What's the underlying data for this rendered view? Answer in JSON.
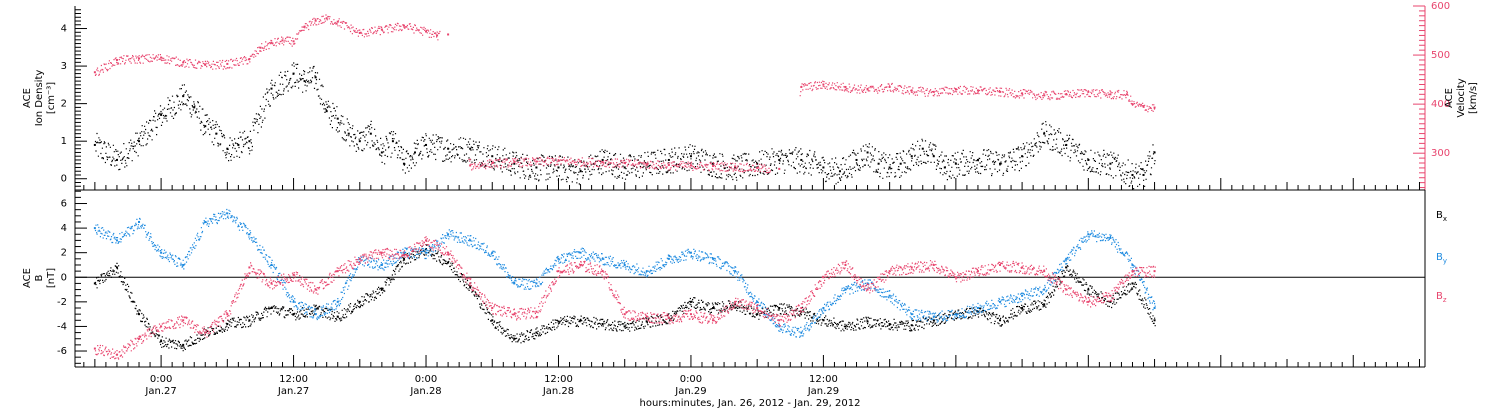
{
  "colors": {
    "density": "#000000",
    "velocity": "#e8456e",
    "bx": "#000000",
    "by": "#1f8be0",
    "bz": "#e8456e",
    "axis": "#000000"
  },
  "chart_data": [
    {
      "type": "scatter",
      "panel": "top",
      "left_label_lines": [
        "ACE",
        "Ion Density",
        "[cm⁻³]"
      ],
      "right_label_lines": [
        "ACE",
        "Velocity",
        "[km/s]"
      ],
      "left_ylim": [
        -0.3,
        4.6
      ],
      "left_ticks": [
        0,
        1,
        2,
        3,
        4
      ],
      "right_ylim": [
        225,
        600
      ],
      "right_ticks": [
        300,
        400,
        500,
        600
      ],
      "series": [
        {
          "axis": "left",
          "color": "#000000",
          "x": [
            -6,
            -4,
            -2,
            0,
            2,
            3,
            4,
            5,
            6,
            7,
            8,
            10,
            12,
            13,
            14,
            15,
            16,
            17,
            18,
            19,
            20,
            21,
            22,
            23,
            24,
            26,
            28,
            30,
            32,
            34,
            36,
            38,
            40,
            42,
            44,
            46,
            48,
            50,
            52,
            54,
            56,
            58,
            60,
            61.5,
            63,
            64,
            65,
            66,
            67,
            68,
            69,
            70,
            71,
            72,
            74,
            76,
            78,
            80,
            82,
            84,
            86,
            88,
            89,
            90
          ],
          "values": [
            0.9,
            0.5,
            1.0,
            1.7,
            2.2,
            1.9,
            1.4,
            1.2,
            0.8,
            0.9,
            1.0,
            2.4,
            2.8,
            2.6,
            2.7,
            1.8,
            1.6,
            1.2,
            1.0,
            1.2,
            0.7,
            1.0,
            0.4,
            0.7,
            0.9,
            0.8,
            0.8,
            0.6,
            0.4,
            0.3,
            0.3,
            0.2,
            0.5,
            0.3,
            0.4,
            0.5,
            0.6,
            0.4,
            0.3,
            0.4,
            0.5,
            0.5,
            0.3,
            0.2,
            0.5,
            0.7,
            0.4,
            0.3,
            0.4,
            0.6,
            0.8,
            0.6,
            0.3,
            0.4,
            0.5,
            0.4,
            0.6,
            1.2,
            0.9,
            0.5,
            0.4,
            0.1,
            0.1,
            0.7
          ]
        },
        {
          "axis": "right",
          "color": "#e8456e",
          "x": [
            -6,
            -4,
            -2,
            0,
            2,
            4,
            6,
            8,
            9,
            10,
            11,
            12,
            13,
            14,
            15,
            16,
            18,
            20,
            22,
            24,
            25,
            26,
            28,
            30,
            32,
            34,
            36,
            38,
            40,
            42,
            44,
            46,
            48,
            50,
            52,
            54,
            56,
            58,
            60,
            62,
            64,
            66,
            68,
            70,
            72,
            74,
            76,
            78,
            80,
            82,
            84,
            86,
            87.5,
            88,
            89,
            90
          ],
          "values": [
            465,
            490,
            493,
            495,
            485,
            480,
            482,
            492,
            515,
            525,
            530,
            528,
            558,
            570,
            575,
            568,
            545,
            552,
            560,
            548,
            540,
            542,
            275,
            280,
            282,
            283,
            285,
            283,
            282,
            280,
            278,
            276,
            275,
            274,
            273,
            270,
            268,
            435,
            440,
            435,
            430,
            435,
            428,
            425,
            430,
            428,
            425,
            422,
            418,
            420,
            425,
            420,
            420,
            400,
            395,
            393
          ]
        }
      ]
    },
    {
      "type": "scatter",
      "panel": "bottom",
      "left_label_lines": [
        "ACE",
        "B",
        "[nT]"
      ],
      "ylim": [
        -7.3,
        7.1
      ],
      "ticks": [
        -6,
        -4,
        -2,
        0,
        2,
        4,
        6
      ],
      "zero_line": true,
      "legend": [
        {
          "key": "bx",
          "label": "B",
          "sub": "x"
        },
        {
          "key": "by",
          "label": "B",
          "sub": "y"
        },
        {
          "key": "bz",
          "label": "B",
          "sub": "z"
        }
      ],
      "series": [
        {
          "key": "bx",
          "color": "#000000",
          "x": [
            -6,
            -4,
            -2,
            0,
            2,
            4,
            6,
            8,
            10,
            12,
            14,
            16,
            18,
            20,
            22,
            24,
            26,
            28,
            30,
            32,
            34,
            36,
            38,
            40,
            42,
            44,
            46,
            48,
            50,
            52,
            54,
            56,
            58,
            60,
            62,
            64,
            66,
            68,
            70,
            72,
            74,
            76,
            78,
            80,
            82,
            84,
            86,
            88,
            90
          ],
          "values": [
            -0.5,
            0.8,
            -3.0,
            -5.2,
            -5.5,
            -4.5,
            -3.8,
            -3.5,
            -2.5,
            -3.0,
            -2.6,
            -3.2,
            -2.0,
            -1.0,
            1.5,
            2.3,
            1.2,
            -0.8,
            -3.5,
            -5.0,
            -4.5,
            -3.6,
            -3.5,
            -3.8,
            -4.0,
            -3.6,
            -3.3,
            -2.0,
            -2.5,
            -2.2,
            -3.0,
            -2.5,
            -2.8,
            -3.5,
            -4.0,
            -3.6,
            -3.8,
            -3.9,
            -3.5,
            -3.0,
            -2.8,
            -3.5,
            -2.5,
            -2.2,
            0.8,
            -1.0,
            -2.0,
            -0.5,
            -3.5
          ]
        },
        {
          "key": "by",
          "color": "#1f8be0",
          "x": [
            -6,
            -4,
            -2,
            0,
            2,
            4,
            6,
            8,
            10,
            12,
            14,
            16,
            18,
            20,
            22,
            24,
            26,
            28,
            30,
            32,
            34,
            36,
            38,
            40,
            42,
            44,
            46,
            48,
            50,
            52,
            54,
            56,
            58,
            60,
            62,
            64,
            66,
            68,
            70,
            72,
            74,
            76,
            78,
            80,
            82,
            84,
            86,
            88,
            90
          ],
          "values": [
            4.0,
            3.0,
            4.5,
            2.0,
            1.0,
            4.5,
            5.2,
            3.5,
            1.0,
            -2.0,
            -3.0,
            -2.0,
            1.5,
            1.0,
            2.0,
            2.0,
            3.5,
            3.0,
            2.0,
            -0.5,
            -0.5,
            1.5,
            2.0,
            1.5,
            1.0,
            0.5,
            1.5,
            2.0,
            1.5,
            0.5,
            -2.0,
            -4.0,
            -4.5,
            -2.5,
            -1.0,
            -0.5,
            -1.5,
            -3.0,
            -3.2,
            -3.0,
            -2.5,
            -2.0,
            -1.5,
            -1.0,
            1.5,
            3.5,
            3.2,
            1.0,
            -2.5
          ]
        },
        {
          "key": "bz",
          "color": "#e8456e",
          "x": [
            -6,
            -4,
            -2,
            0,
            2,
            4,
            6,
            8,
            10,
            12,
            14,
            16,
            18,
            20,
            22,
            24,
            26,
            28,
            30,
            32,
            34,
            36,
            38,
            40,
            42,
            44,
            46,
            48,
            50,
            52,
            54,
            56,
            58,
            60,
            62,
            64,
            66,
            68,
            70,
            72,
            74,
            76,
            78,
            80,
            82,
            84,
            86,
            88,
            90
          ],
          "values": [
            -5.8,
            -6.3,
            -5.0,
            -4.0,
            -3.5,
            -4.5,
            -3.0,
            0.8,
            -0.5,
            0.2,
            -1.0,
            0.5,
            1.5,
            2.0,
            1.8,
            3.0,
            2.0,
            -0.5,
            -2.5,
            -3.0,
            -2.8,
            0.5,
            1.0,
            0.5,
            -3.0,
            -3.2,
            -3.3,
            -3.0,
            -3.5,
            -2.0,
            -2.5,
            -3.5,
            -2.5,
            0.0,
            1.0,
            -1.0,
            0.5,
            0.8,
            1.0,
            0.0,
            0.5,
            1.0,
            0.8,
            0.5,
            -1.0,
            -2.0,
            -1.5,
            0.5,
            0.5
          ]
        }
      ]
    }
  ],
  "x_axis": {
    "xlim": [
      -7.8,
      114.5
    ],
    "ticks": [
      {
        "x": 0,
        "time": "0:00",
        "date": "Jan.27"
      },
      {
        "x": 12,
        "time": "12:00",
        "date": "Jan.27"
      },
      {
        "x": 24,
        "time": "0:00",
        "date": "Jan.28"
      },
      {
        "x": 36,
        "time": "12:00",
        "date": "Jan.28"
      },
      {
        "x": 48,
        "time": "0:00",
        "date": "Jan.29"
      },
      {
        "x": 60,
        "time": "12:00",
        "date": "Jan.29"
      }
    ],
    "xlabel": "hours:minutes, Jan. 26, 2012 - Jan. 29, 2012"
  }
}
